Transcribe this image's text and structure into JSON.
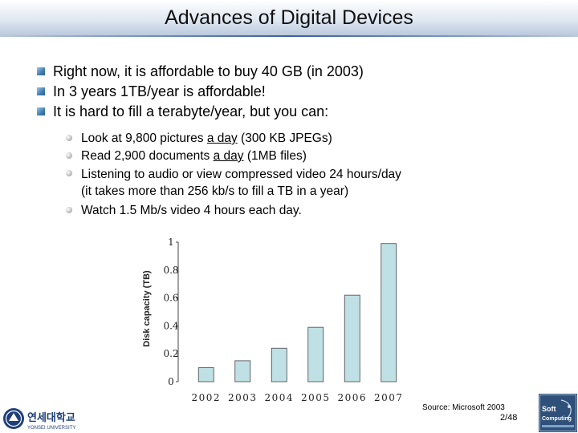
{
  "slide": {
    "title": "Advances of Digital Devices",
    "bullets": [
      "Right now, it is affordable to buy 40 GB (in 2003)",
      "In 3 years 1TB/year is affordable!",
      "It is hard to fill a terabyte/year, but you can:"
    ],
    "sub_bullets": {
      "pictures": {
        "before": "Look at 9,800 pictures ",
        "emph": "a day",
        "after": " (300 KB JPEGs)"
      },
      "documents": {
        "before": "Read 2,900 documents ",
        "emph": "a day",
        "after": " (1MB files)"
      },
      "audio_line1": "Listening to audio or view compressed video 24 hours/day",
      "audio_line2": "(it takes more than 256 kb/s to fill a TB in a year)",
      "video": "Watch 1.5 Mb/s video 4 hours each day."
    },
    "source": "Source: Microsoft 2003",
    "page": "2/48",
    "university": {
      "korean": "연세대학교",
      "english": "YONSEI UNIVERSITY"
    },
    "lab_logo": {
      "line1": "Soft",
      "line2": "Computing"
    }
  },
  "colors": {
    "bar_fill": "#bfe0e4",
    "bar_stroke": "#444444",
    "accent_blue": "#2b5f93"
  },
  "chart_data": {
    "type": "bar",
    "categories": [
      "2002",
      "2003",
      "2004",
      "2005",
      "2006",
      "2007"
    ],
    "values": [
      0.1,
      0.15,
      0.24,
      0.39,
      0.62,
      0.99
    ],
    "ylabel": "Disk capacity (TB)",
    "yticks": [
      "0",
      "0.2",
      "0.4",
      "0.6",
      "0.8",
      "1"
    ],
    "ylim": [
      0,
      1
    ],
    "grid": false
  }
}
